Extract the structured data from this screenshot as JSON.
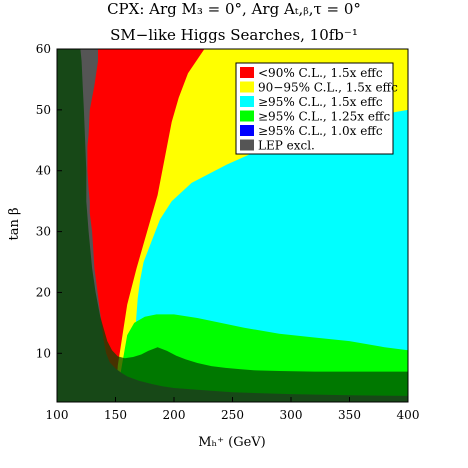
{
  "chart_data": {
    "type": "area",
    "title_lines": [
      "CPX:  Arg M₃ = 0°,  Arg Aₜ,ᵦ,τ = 0°",
      "SM−like Higgs Searches, 10fb⁻¹"
    ],
    "xlabel": "Mₕ⁺ (GeV)",
    "ylabel": "tan β",
    "xlim": [
      100,
      400
    ],
    "ylim": [
      2,
      60
    ],
    "xticks": [
      100,
      150,
      200,
      250,
      300,
      350,
      400
    ],
    "yticks": [
      10,
      20,
      30,
      40,
      50,
      60
    ],
    "legend_position": "top-right",
    "legend": [
      {
        "label": "<90% C.L., 1.5x effc",
        "color": "#ff0000"
      },
      {
        "label": "90−95% C.L., 1.5x effc",
        "color": "#ffff00"
      },
      {
        "label": "≥95% C.L., 1.5x effc",
        "color": "#00ffff"
      },
      {
        "label": "≥95% C.L., 1.25x effc",
        "color": "#00ff00"
      },
      {
        "label": "≥95% C.L., 1.0x effc",
        "color": "#0000ff"
      },
      {
        "label": "LEP excl.",
        "color": "#555555"
      }
    ],
    "regions": [
      {
        "name": "<90% C.L., 1.5x effc",
        "color": "#ff0000",
        "boundary": [
          [
            100,
            2
          ],
          [
            400,
            2
          ],
          [
            400,
            60
          ],
          [
            100,
            60
          ]
        ]
      },
      {
        "name": "90−95% C.L., 1.5x effc",
        "color": "#ffff00",
        "boundary": [
          [
            226,
            60
          ],
          [
            400,
            60
          ],
          [
            400,
            2
          ],
          [
            150,
            2
          ],
          [
            152,
            8
          ],
          [
            156,
            13
          ],
          [
            160,
            18
          ],
          [
            164,
            21
          ],
          [
            168,
            24
          ],
          [
            174,
            28
          ],
          [
            180,
            32
          ],
          [
            186,
            36
          ],
          [
            190,
            40
          ],
          [
            194,
            44
          ],
          [
            198,
            48
          ],
          [
            204,
            52
          ],
          [
            212,
            56
          ]
        ]
      },
      {
        "name": "≥95% C.L., 1.5x effc",
        "color": "#00ffff",
        "boundary": [
          [
            400,
            50
          ],
          [
            400,
            2
          ],
          [
            160,
            2
          ],
          [
            164,
            8
          ],
          [
            167,
            14
          ],
          [
            169,
            19
          ],
          [
            171,
            22
          ],
          [
            174,
            25
          ],
          [
            180,
            28
          ],
          [
            188,
            32
          ],
          [
            198,
            35
          ],
          [
            215,
            38
          ],
          [
            245,
            41
          ],
          [
            280,
            44
          ],
          [
            320,
            46
          ],
          [
            360,
            48
          ],
          [
            385,
            49.5
          ]
        ]
      },
      {
        "name": "≥95% C.L., 1.25x effc",
        "color": "#00ff00",
        "boundary": [
          [
            150,
            2
          ],
          [
            400,
            2
          ],
          [
            400,
            10.5
          ],
          [
            380,
            11
          ],
          [
            350,
            12
          ],
          [
            320,
            12.6
          ],
          [
            290,
            13.2
          ],
          [
            260,
            14.2
          ],
          [
            240,
            15
          ],
          [
            220,
            15.8
          ],
          [
            200,
            16.4
          ],
          [
            185,
            16.4
          ],
          [
            175,
            16
          ],
          [
            166,
            15
          ],
          [
            160,
            13
          ]
        ]
      },
      {
        "name": "≥95% C.L., 1.0x effc",
        "color": "#0000ff",
        "boundary": [
          [
            165,
            3
          ],
          [
            170,
            2.8
          ],
          [
            180,
            3
          ],
          [
            185,
            4
          ],
          [
            180,
            5
          ],
          [
            172,
            5
          ],
          [
            166,
            4.2
          ]
        ]
      },
      {
        "name": "LEP excl.",
        "color": "#555555",
        "boundary": [
          [
            100,
            60
          ],
          [
            135,
            60
          ],
          [
            135,
            58
          ],
          [
            132,
            54
          ],
          [
            128,
            50
          ],
          [
            127,
            46
          ],
          [
            126,
            44
          ],
          [
            126,
            40
          ],
          [
            127,
            37
          ],
          [
            128,
            35
          ],
          [
            128,
            33
          ],
          [
            130,
            30
          ],
          [
            131,
            27
          ],
          [
            132,
            24
          ],
          [
            134,
            21
          ],
          [
            136,
            18
          ],
          [
            138,
            15
          ],
          [
            140,
            12
          ],
          [
            142,
            10
          ],
          [
            145,
            8.5
          ],
          [
            150,
            7.5
          ],
          [
            155,
            6.8
          ],
          [
            160,
            6.2
          ],
          [
            170,
            5.5
          ],
          [
            180,
            5
          ],
          [
            190,
            4.6
          ],
          [
            200,
            4.3
          ],
          [
            220,
            4
          ],
          [
            250,
            3.6
          ],
          [
            300,
            3.3
          ],
          [
            350,
            3.1
          ],
          [
            400,
            3
          ],
          [
            400,
            2
          ],
          [
            100,
            2
          ]
        ]
      }
    ],
    "overlay": [
      {
        "name": "CMS-like dark-green envelope",
        "color": "#004400",
        "boundary": [
          [
            100,
            60
          ],
          [
            120,
            60
          ],
          [
            121,
            58
          ],
          [
            122,
            54
          ],
          [
            123,
            50
          ],
          [
            124,
            45
          ],
          [
            125,
            40
          ],
          [
            125,
            35
          ],
          [
            127,
            30
          ],
          [
            130,
            24
          ],
          [
            133,
            20
          ],
          [
            137,
            16
          ],
          [
            140,
            14
          ],
          [
            143,
            12
          ],
          [
            147,
            10.5
          ],
          [
            152,
            9.5
          ],
          [
            158,
            9.2
          ],
          [
            165,
            9.4
          ],
          [
            172,
            9.8
          ],
          [
            178,
            10.4
          ],
          [
            186,
            11
          ],
          [
            194,
            10.4
          ],
          [
            202,
            9.6
          ],
          [
            210,
            9
          ],
          [
            220,
            8.4
          ],
          [
            232,
            7.9
          ],
          [
            244,
            7.6
          ],
          [
            256,
            7.4
          ],
          [
            270,
            7.2
          ],
          [
            290,
            7.1
          ],
          [
            320,
            7
          ],
          [
            350,
            7
          ],
          [
            380,
            7
          ],
          [
            400,
            7
          ],
          [
            400,
            2
          ],
          [
            100,
            2
          ]
        ]
      }
    ]
  }
}
